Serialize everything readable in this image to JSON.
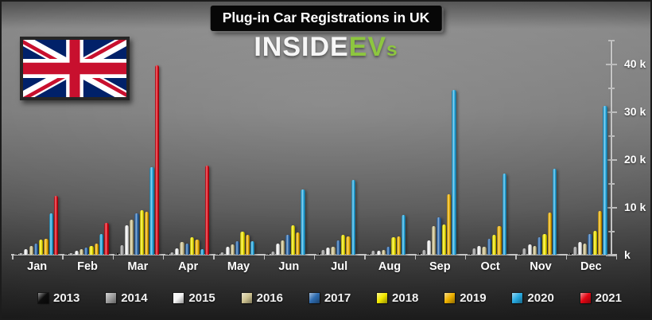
{
  "header": {
    "title": "Plug-in Car Registrations in UK"
  },
  "logo": {
    "part_inside": "INSIDE",
    "part_ev": "EV",
    "part_s": "s",
    "green": "#8dc63f",
    "white": "#f6f6f6"
  },
  "flag": {
    "country": "United Kingdom",
    "blue": "#012169",
    "red": "#C8102E",
    "white": "#FFFFFF"
  },
  "chart_data": {
    "type": "bar",
    "title": "Plug-in Car Registrations in UK",
    "unit": "thousands of registrations",
    "grid": false,
    "categories": [
      "Jan",
      "Feb",
      "Mar",
      "Apr",
      "May",
      "Jun",
      "Jul",
      "Aug",
      "Sep",
      "Oct",
      "Nov",
      "Dec"
    ],
    "series": [
      {
        "name": "2013",
        "color": "#0d0d0d",
        "values": [
          0.1,
          0.1,
          0.3,
          0.1,
          0.2,
          0.2,
          0.3,
          0.2,
          0.4,
          0.2,
          0.2,
          0.3
        ]
      },
      {
        "name": "2014",
        "color": "#a0a0a0",
        "values": [
          0.3,
          0.3,
          2.0,
          0.5,
          0.5,
          0.7,
          1.0,
          0.8,
          1.0,
          1.3,
          1.4,
          1.7
        ]
      },
      {
        "name": "2015",
        "color": "#f4f4f4",
        "values": [
          1.2,
          0.9,
          6.1,
          1.3,
          1.7,
          2.4,
          1.5,
          0.9,
          3.0,
          1.9,
          2.2,
          2.6
        ]
      },
      {
        "name": "2016",
        "color": "#cfc492",
        "values": [
          1.9,
          1.2,
          7.4,
          2.6,
          2.2,
          3.0,
          1.6,
          1.0,
          6.0,
          1.6,
          1.9,
          2.3
        ]
      },
      {
        "name": "2017",
        "color": "#2e6cb0",
        "values": [
          2.4,
          1.5,
          8.6,
          2.4,
          2.8,
          4.2,
          3.0,
          1.6,
          7.9,
          3.3,
          3.7,
          4.3
        ]
      },
      {
        "name": "2018",
        "color": "#f4ea00",
        "values": [
          3.1,
          1.9,
          9.3,
          3.6,
          4.9,
          6.2,
          4.2,
          3.7,
          6.3,
          4.1,
          4.4,
          5.0
        ]
      },
      {
        "name": "2019",
        "color": "#efb200",
        "values": [
          3.4,
          2.3,
          9.0,
          3.1,
          4.1,
          4.6,
          3.9,
          3.9,
          12.6,
          6.0,
          8.8,
          9.1
        ]
      },
      {
        "name": "2020",
        "color": "#27aae1",
        "values": [
          8.6,
          4.4,
          18.3,
          1.1,
          2.9,
          13.6,
          15.6,
          8.3,
          34.5,
          17.0,
          18.0,
          31.2
        ]
      },
      {
        "name": "2021",
        "color": "#e30613",
        "values": [
          12.4,
          6.7,
          39.6,
          18.7,
          null,
          null,
          null,
          null,
          null,
          null,
          null,
          null
        ]
      }
    ],
    "y_axis": {
      "side": "right",
      "ylim": [
        0,
        45
      ],
      "tick_labels": [
        {
          "label": "40 k",
          "value": 40
        },
        {
          "label": "30 k",
          "value": 30
        },
        {
          "label": "20 k",
          "value": 20
        },
        {
          "label": "10 k",
          "value": 10
        },
        {
          "label": "k",
          "value": 0
        }
      ],
      "major_ticks": [
        0,
        10,
        20,
        30,
        40
      ],
      "minor_ticks": [
        5,
        15,
        25,
        35,
        45
      ]
    },
    "legend": {
      "position": "bottom",
      "entries": [
        "2013",
        "2014",
        "2015",
        "2016",
        "2017",
        "2018",
        "2019",
        "2020",
        "2021"
      ]
    }
  }
}
